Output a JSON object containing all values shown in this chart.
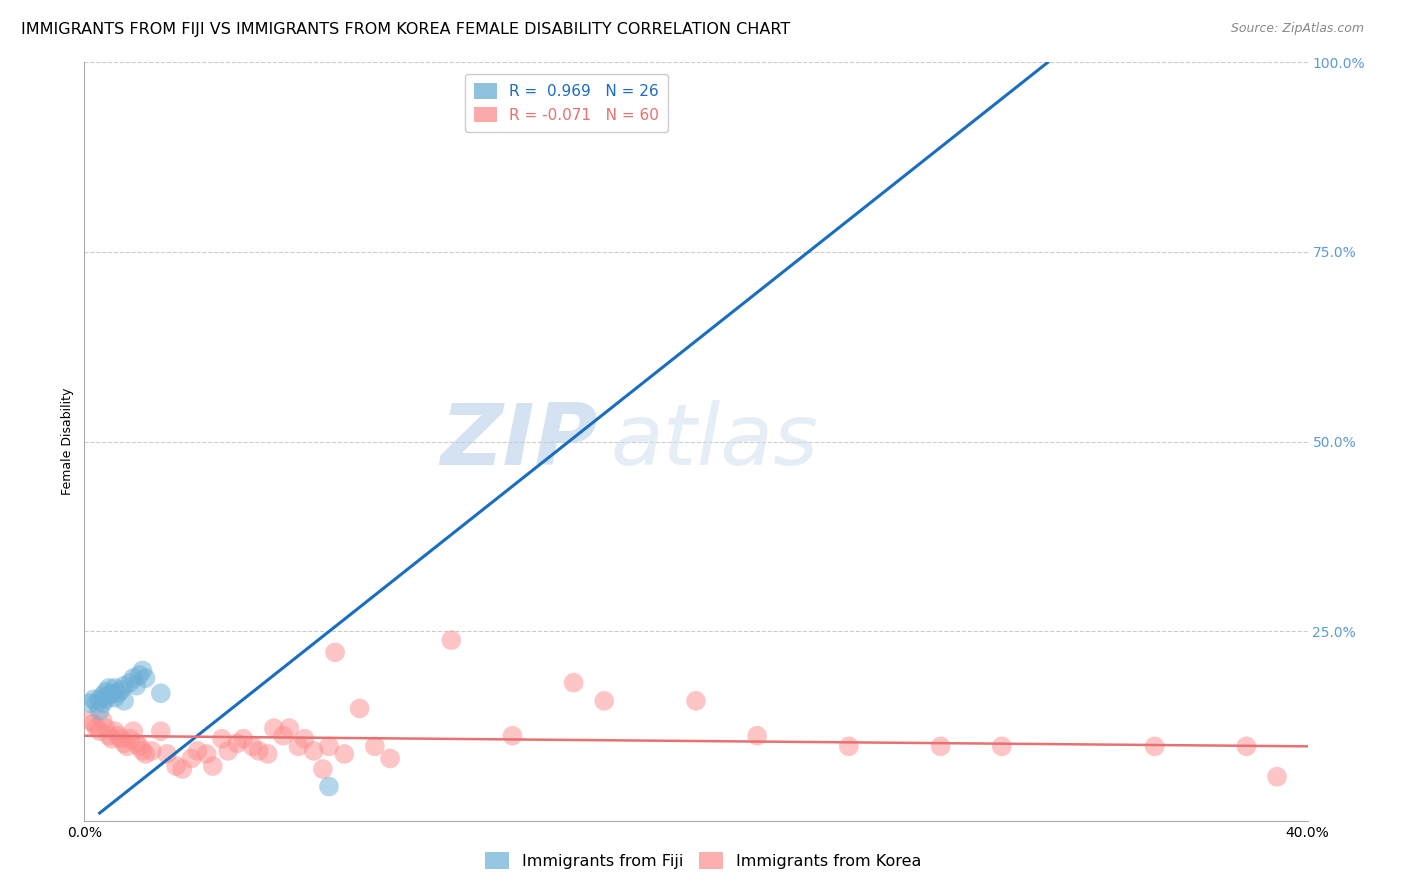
{
  "title": "IMMIGRANTS FROM FIJI VS IMMIGRANTS FROM KOREA FEMALE DISABILITY CORRELATION CHART",
  "source": "Source: ZipAtlas.com",
  "ylabel": "Female Disability",
  "xlim": [
    0.0,
    0.4
  ],
  "ylim": [
    0.0,
    1.0
  ],
  "fiji_color": "#6baed6",
  "korea_color": "#fc8d8d",
  "fiji_line_color": "#1a6dbf",
  "korea_line_color": "#e87070",
  "fiji_R": 0.969,
  "fiji_N": 26,
  "korea_R": -0.071,
  "korea_N": 60,
  "fiji_line_x0": 0.005,
  "fiji_line_y0": 0.01,
  "fiji_line_x1": 0.315,
  "fiji_line_y1": 1.0,
  "korea_line_x0": 0.0,
  "korea_line_y0": 0.112,
  "korea_line_x1": 0.4,
  "korea_line_y1": 0.098,
  "fiji_points": [
    [
      0.002,
      0.155
    ],
    [
      0.003,
      0.16
    ],
    [
      0.004,
      0.155
    ],
    [
      0.005,
      0.145
    ],
    [
      0.005,
      0.16
    ],
    [
      0.006,
      0.155
    ],
    [
      0.006,
      0.165
    ],
    [
      0.007,
      0.17
    ],
    [
      0.007,
      0.16
    ],
    [
      0.008,
      0.165
    ],
    [
      0.008,
      0.175
    ],
    [
      0.009,
      0.168
    ],
    [
      0.01,
      0.175
    ],
    [
      0.01,
      0.162
    ],
    [
      0.011,
      0.168
    ],
    [
      0.012,
      0.172
    ],
    [
      0.013,
      0.178
    ],
    [
      0.013,
      0.158
    ],
    [
      0.015,
      0.182
    ],
    [
      0.016,
      0.188
    ],
    [
      0.017,
      0.178
    ],
    [
      0.018,
      0.192
    ],
    [
      0.019,
      0.198
    ],
    [
      0.02,
      0.188
    ],
    [
      0.025,
      0.168
    ],
    [
      0.08,
      0.045
    ]
  ],
  "korea_points": [
    [
      0.002,
      0.132
    ],
    [
      0.003,
      0.128
    ],
    [
      0.004,
      0.122
    ],
    [
      0.005,
      0.118
    ],
    [
      0.006,
      0.132
    ],
    [
      0.007,
      0.122
    ],
    [
      0.008,
      0.112
    ],
    [
      0.009,
      0.108
    ],
    [
      0.01,
      0.118
    ],
    [
      0.011,
      0.112
    ],
    [
      0.012,
      0.108
    ],
    [
      0.013,
      0.102
    ],
    [
      0.014,
      0.098
    ],
    [
      0.015,
      0.108
    ],
    [
      0.016,
      0.118
    ],
    [
      0.017,
      0.102
    ],
    [
      0.018,
      0.098
    ],
    [
      0.019,
      0.092
    ],
    [
      0.02,
      0.088
    ],
    [
      0.022,
      0.092
    ],
    [
      0.025,
      0.118
    ],
    [
      0.027,
      0.088
    ],
    [
      0.03,
      0.072
    ],
    [
      0.032,
      0.068
    ],
    [
      0.035,
      0.082
    ],
    [
      0.037,
      0.092
    ],
    [
      0.04,
      0.088
    ],
    [
      0.042,
      0.072
    ],
    [
      0.045,
      0.108
    ],
    [
      0.047,
      0.092
    ],
    [
      0.05,
      0.102
    ],
    [
      0.052,
      0.108
    ],
    [
      0.055,
      0.098
    ],
    [
      0.057,
      0.092
    ],
    [
      0.06,
      0.088
    ],
    [
      0.062,
      0.122
    ],
    [
      0.065,
      0.112
    ],
    [
      0.067,
      0.122
    ],
    [
      0.07,
      0.098
    ],
    [
      0.072,
      0.108
    ],
    [
      0.075,
      0.092
    ],
    [
      0.078,
      0.068
    ],
    [
      0.08,
      0.098
    ],
    [
      0.082,
      0.222
    ],
    [
      0.085,
      0.088
    ],
    [
      0.09,
      0.148
    ],
    [
      0.095,
      0.098
    ],
    [
      0.1,
      0.082
    ],
    [
      0.12,
      0.238
    ],
    [
      0.14,
      0.112
    ],
    [
      0.16,
      0.182
    ],
    [
      0.17,
      0.158
    ],
    [
      0.2,
      0.158
    ],
    [
      0.22,
      0.112
    ],
    [
      0.25,
      0.098
    ],
    [
      0.28,
      0.098
    ],
    [
      0.3,
      0.098
    ],
    [
      0.35,
      0.098
    ],
    [
      0.38,
      0.098
    ],
    [
      0.39,
      0.058
    ]
  ],
  "watermark_zip": "ZIP",
  "watermark_atlas": "atlas",
  "background_color": "#ffffff",
  "grid_color": "#cccccc",
  "title_fontsize": 11.5,
  "axis_label_fontsize": 9,
  "tick_fontsize": 10,
  "legend_fontsize": 11,
  "right_tick_color": "#5b9bd5",
  "scatter_size": 200
}
